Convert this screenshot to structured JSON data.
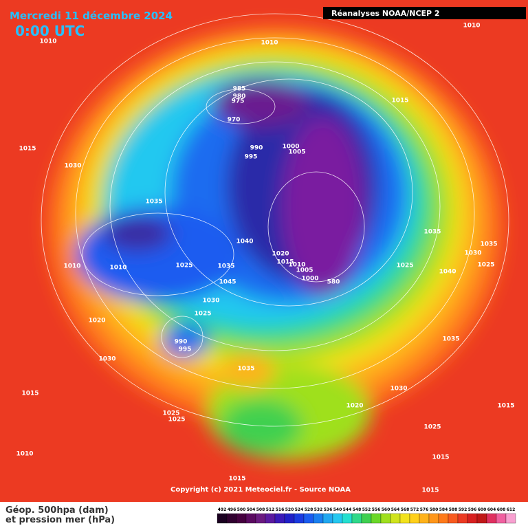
{
  "header": {
    "date": "Mercredi 11 décembre 2024",
    "time": "0:00 UTC",
    "source": "Réanalyses NOAA/NCEP 2"
  },
  "isobar_labels": [
    "1010",
    "1010",
    "1010",
    "985",
    "980",
    "975",
    "970",
    "1015",
    "1015",
    "990",
    "995",
    "1000",
    "1005",
    "1030",
    "1035",
    "1040",
    "1035",
    "1035",
    "1030",
    "1025",
    "1020",
    "1015",
    "1010",
    "1005",
    "1000",
    "580",
    "1010",
    "1010",
    "1025",
    "1035",
    "1045",
    "1025",
    "1040",
    "1030",
    "1025",
    "990",
    "995",
    "1020",
    "1030",
    "1035",
    "1035",
    "1030",
    "1015",
    "1020",
    "1025",
    "1025",
    "1025",
    "1015",
    "1010",
    "1015",
    "1015",
    "1015"
  ],
  "footer": {
    "copyright": "Copyright (c) 2021 Meteociel.fr - Source NOAA",
    "legend_line1": "Géop. 500hpa (dam)",
    "legend_line2": "et pression mer (hPa)"
  },
  "colorbar": {
    "ticks": [
      492,
      496,
      500,
      504,
      508,
      512,
      516,
      520,
      524,
      528,
      532,
      536,
      540,
      544,
      548,
      552,
      556,
      560,
      564,
      568,
      572,
      576,
      580,
      584,
      588,
      592,
      596,
      600,
      604,
      608,
      612
    ]
  }
}
